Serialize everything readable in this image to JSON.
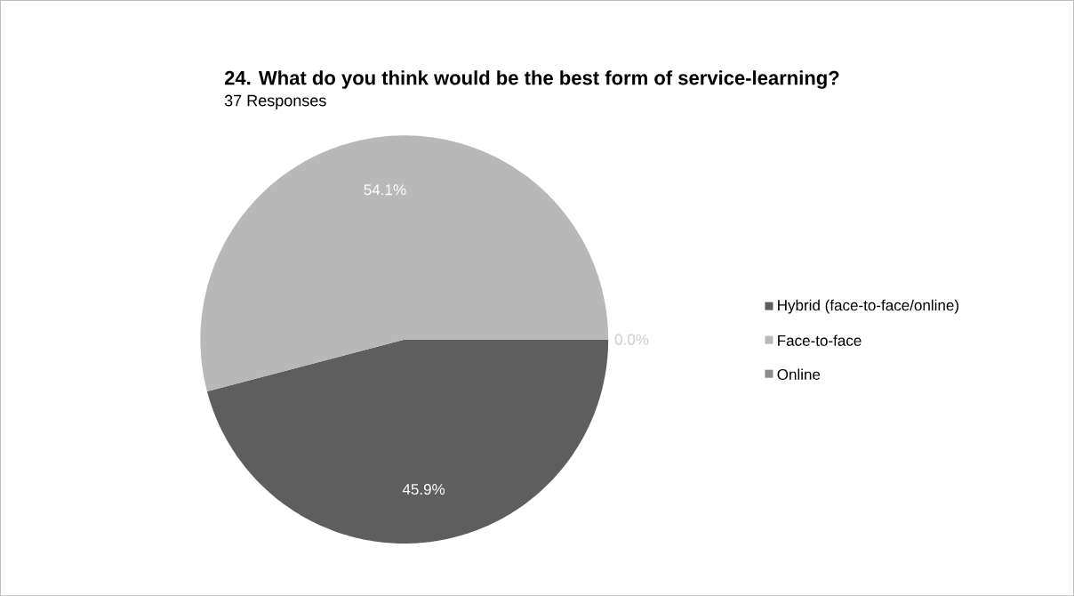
{
  "chart_data": {
    "type": "pie",
    "title": "24. What do you think would be the best form of service-learning?",
    "subtitle": "37 Responses",
    "categories": [
      "Hybrid (face-to-face/online)",
      "Face-to-face",
      "Online"
    ],
    "values": [
      45.9,
      54.1,
      0.0
    ],
    "colors": [
      "#5e5e5e",
      "#b8b8b8",
      "#8c8c8c"
    ],
    "value_labels": [
      "45.9%",
      "54.1%",
      "0.0%"
    ],
    "legend": "right"
  }
}
